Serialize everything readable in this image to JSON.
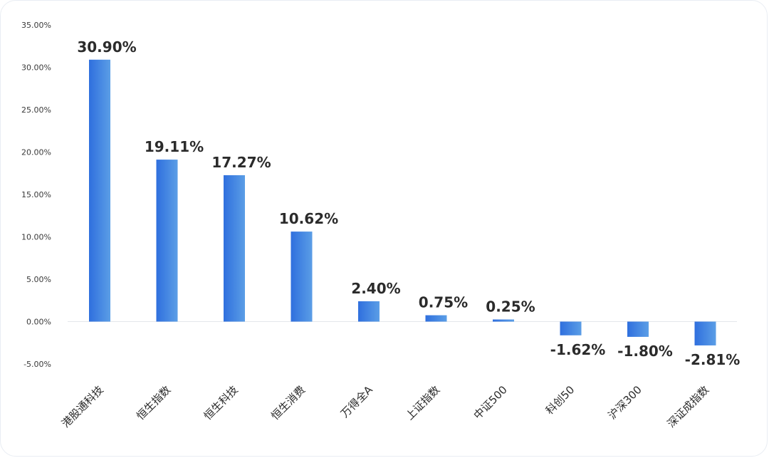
{
  "chart_data": {
    "type": "bar",
    "title": "",
    "xlabel": "",
    "ylabel": "",
    "categories": [
      "港股通科技",
      "恒生指数",
      "恒生科技",
      "恒生消费",
      "万得全A",
      "上证指数",
      "中证500",
      "科创50",
      "沪深300",
      "深证成指数"
    ],
    "values": [
      30.9,
      19.11,
      17.27,
      10.62,
      2.4,
      0.75,
      0.25,
      -1.62,
      -1.8,
      -2.81
    ],
    "value_labels": [
      "30.90%",
      "19.11%",
      "17.27%",
      "10.62%",
      "2.40%",
      "0.75%",
      "0.25%",
      "-1.62%",
      "-1.80%",
      "-2.81%"
    ],
    "y_ticks": [
      35,
      30,
      25,
      20,
      15,
      10,
      5,
      0,
      -5
    ],
    "y_tick_labels": [
      "35.00%",
      "30.00%",
      "25.00%",
      "20.00%",
      "15.00%",
      "10.00%",
      "5.00%",
      "0.00%",
      "-5.00%"
    ],
    "ylim": [
      -5,
      35
    ],
    "grid": false,
    "legend": "none",
    "colors": {
      "bar_gradient_start": "#2f6fde",
      "bar_gradient_end": "#5b9ee6",
      "zero_line": "#e3e6eb",
      "card_border": "#e9edf3"
    }
  }
}
